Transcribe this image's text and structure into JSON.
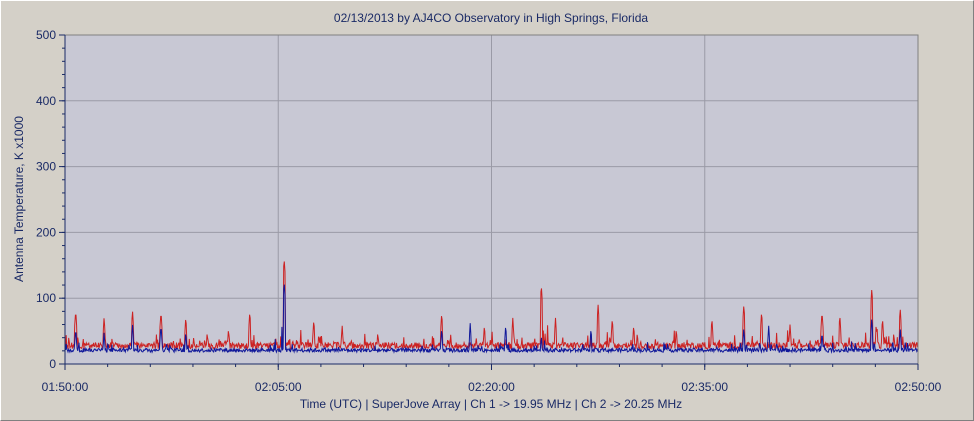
{
  "chart_data": {
    "type": "line",
    "title": "02/13/2013  by  AJ4CO Observatory  in  High Springs, Florida",
    "xlabel": "Time (UTC)   |   SuperJove Array   |   Ch 1 -> 19.95 MHz   |   Ch 2 -> 20.25 MHz",
    "ylabel": "Antenna Temperature, K x1000",
    "xlim": [
      "01:50:00",
      "02:50:00"
    ],
    "ylim": [
      0,
      500
    ],
    "x_ticks": [
      "01:50:00",
      "02:05:00",
      "02:20:00",
      "02:35:00",
      "02:50:00"
    ],
    "y_ticks": [
      "0",
      "100",
      "200",
      "300",
      "400",
      "500"
    ],
    "grid": true,
    "background": "#c8c8d4",
    "series": [
      {
        "color": "#cc2222",
        "baseline": 28,
        "peaks": [
          {
            "t": "01:50:45",
            "v": 82
          },
          {
            "t": "01:52:45",
            "v": 72
          },
          {
            "t": "01:54:45",
            "v": 82
          },
          {
            "t": "01:56:45",
            "v": 80
          },
          {
            "t": "01:58:30",
            "v": 72
          },
          {
            "t": "02:00:00",
            "v": 50
          },
          {
            "t": "02:01:30",
            "v": 55
          },
          {
            "t": "02:03:00",
            "v": 80
          },
          {
            "t": "02:05:25",
            "v": 160
          },
          {
            "t": "02:07:30",
            "v": 68
          },
          {
            "t": "02:09:30",
            "v": 58
          },
          {
            "t": "02:12:00",
            "v": 50
          },
          {
            "t": "02:16:30",
            "v": 78
          },
          {
            "t": "02:19:30",
            "v": 60
          },
          {
            "t": "02:21:30",
            "v": 70
          },
          {
            "t": "02:23:30",
            "v": 120
          },
          {
            "t": "02:24:30",
            "v": 70
          },
          {
            "t": "02:27:30",
            "v": 90
          },
          {
            "t": "02:28:30",
            "v": 70
          },
          {
            "t": "02:30:00",
            "v": 60
          },
          {
            "t": "02:33:00",
            "v": 55
          },
          {
            "t": "02:35:30",
            "v": 70
          },
          {
            "t": "02:37:45",
            "v": 90
          },
          {
            "t": "02:39:00",
            "v": 80
          },
          {
            "t": "02:41:00",
            "v": 60
          },
          {
            "t": "02:43:15",
            "v": 80
          },
          {
            "t": "02:44:30",
            "v": 75
          },
          {
            "t": "02:46:45",
            "v": 115
          },
          {
            "t": "02:47:30",
            "v": 70
          },
          {
            "t": "02:48:45",
            "v": 85
          }
        ]
      },
      {
        "color": "#10189a",
        "baseline": 21,
        "peaks": [
          {
            "t": "01:50:45",
            "v": 55
          },
          {
            "t": "01:52:45",
            "v": 50
          },
          {
            "t": "01:54:45",
            "v": 62
          },
          {
            "t": "01:56:45",
            "v": 60
          },
          {
            "t": "01:58:30",
            "v": 50
          },
          {
            "t": "02:05:25",
            "v": 125
          },
          {
            "t": "02:16:30",
            "v": 55
          },
          {
            "t": "02:18:30",
            "v": 62
          },
          {
            "t": "02:21:00",
            "v": 60
          },
          {
            "t": "02:23:30",
            "v": 45
          },
          {
            "t": "02:27:00",
            "v": 55
          },
          {
            "t": "02:37:45",
            "v": 55
          },
          {
            "t": "02:39:30",
            "v": 58
          },
          {
            "t": "02:43:15",
            "v": 50
          },
          {
            "t": "02:46:45",
            "v": 70
          },
          {
            "t": "02:48:45",
            "v": 55
          }
        ]
      }
    ]
  }
}
